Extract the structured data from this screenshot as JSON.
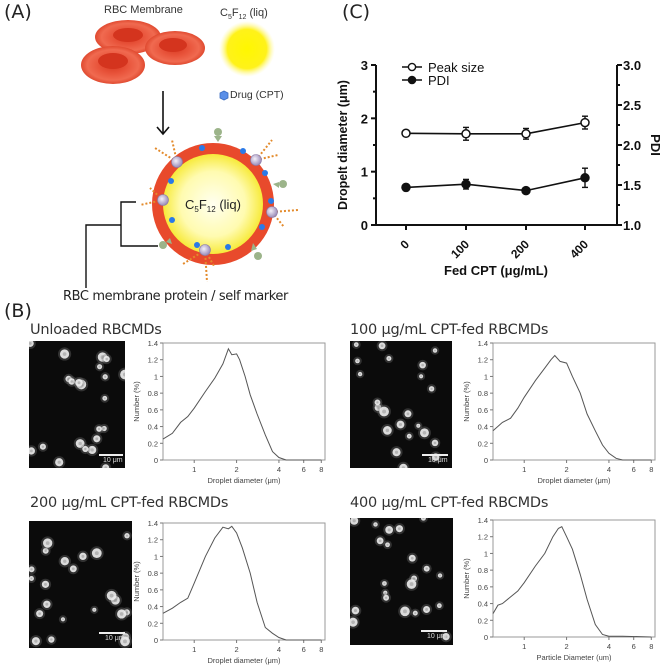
{
  "panel_a": {
    "label": "(A)",
    "rbc_label": "RBC Membrane",
    "c5f12_label": "C5F12 (liq)",
    "c5f12_main": "C",
    "c5f12_sub1": "5",
    "c5f12_f": "F",
    "c5f12_sub2": "12",
    "c5f12_suffix": " (liq)",
    "drug_label": "Drug (CPT)",
    "core_label": "C5F12 (liq)",
    "marker_label": "RBC membrane protein / self marker",
    "colors": {
      "rbc": "#e8472e",
      "core": "#fff200",
      "drug": "#3a7be0",
      "chain": "#e38a2b"
    }
  },
  "panel_b": {
    "label": "(B)",
    "subpanels": [
      {
        "title": "Unloaded RBCMDs",
        "scale_text": "10 μm",
        "xlabel": "Droplet diameter (μm)",
        "ylabel": "Number (%)"
      },
      {
        "title": "100 μg/mL CPT-fed RBCMDs",
        "scale_text": "10 μm",
        "xlabel": "Droplet diameter (μm)",
        "ylabel": "Number (%)"
      },
      {
        "title": "200 μg/mL CPT-fed RBCMDs",
        "scale_text": "10 μm",
        "xlabel": "Droplet diameter (μm)",
        "ylabel": "Number (%)"
      },
      {
        "title": "400 μg/mL CPT-fed RBCMDs",
        "scale_text": "10 μm",
        "xlabel": "Particle Diameter (um)",
        "ylabel": "Number (%)"
      }
    ]
  },
  "panel_c": {
    "label": "(C)"
  },
  "chart_data": [
    {
      "type": "line",
      "title": "(C)",
      "xlabel": "Fed CPT (μg/mL)",
      "ylabel": "Dropelt diameter (μm)",
      "y2label": "PDI",
      "categories": [
        "0",
        "100",
        "200",
        "400"
      ],
      "ylim": [
        0,
        3
      ],
      "y2lim": [
        1.0,
        3.0
      ],
      "yticks": [
        "0",
        "1",
        "2",
        "3"
      ],
      "y2ticks": [
        "1.0",
        "1.5",
        "2.0",
        "2.5",
        "3.0"
      ],
      "legend": [
        "Peak size",
        "PDI"
      ],
      "legend_position": "upper left",
      "grid": false,
      "series": [
        {
          "name": "Peak size",
          "axis": "left",
          "marker": "open-circle",
          "values": [
            1.72,
            1.71,
            1.71,
            1.92
          ],
          "errors": [
            0.03,
            0.12,
            0.1,
            0.12
          ]
        },
        {
          "name": "PDI",
          "axis": "right",
          "marker": "filled-circle",
          "values": [
            1.47,
            1.51,
            1.43,
            1.59
          ],
          "errors": [
            0.04,
            0.06,
            0.02,
            0.12
          ]
        }
      ]
    },
    {
      "type": "line",
      "title": "Unloaded RBCMDs",
      "xlabel": "Droplet diameter (μm)",
      "ylabel": "Number (%)",
      "xscale": "log",
      "xticks": [
        "1",
        "2",
        "4",
        "6",
        "8"
      ],
      "yticks": [
        "0",
        "0.2",
        "0.4",
        "0.6",
        "0.8",
        "1",
        "1.2",
        "1.4"
      ],
      "ylim": [
        0,
        1.4
      ],
      "x": [
        0.6,
        0.7,
        0.8,
        0.9,
        1.0,
        1.2,
        1.4,
        1.6,
        1.75,
        1.85,
        2.0,
        2.1,
        2.3,
        2.5,
        2.8,
        3.2,
        3.6,
        4.0,
        4.5,
        6.0,
        8.0
      ],
      "values": [
        0.25,
        0.32,
        0.45,
        0.52,
        0.62,
        0.82,
        0.98,
        1.15,
        1.33,
        1.26,
        1.27,
        1.2,
        1.0,
        0.78,
        0.55,
        0.3,
        0.1,
        0.03,
        0.0,
        0.0,
        0.0
      ]
    },
    {
      "type": "line",
      "title": "100 μg/mL CPT-fed RBCMDs",
      "xlabel": "Droplet diameter (μm)",
      "ylabel": "Number (%)",
      "xscale": "log",
      "xticks": [
        "1",
        "2",
        "4",
        "6",
        "8"
      ],
      "yticks": [
        "0",
        "0.2",
        "0.4",
        "0.6",
        "0.8",
        "1",
        "1.2",
        "1.4"
      ],
      "ylim": [
        0,
        1.4
      ],
      "x": [
        0.6,
        0.7,
        0.8,
        0.9,
        1.0,
        1.2,
        1.4,
        1.55,
        1.65,
        1.8,
        2.0,
        2.2,
        2.5,
        2.8,
        3.2,
        3.6,
        4.0,
        4.5,
        5.0,
        6.0,
        8.0
      ],
      "values": [
        0.35,
        0.45,
        0.5,
        0.62,
        0.75,
        0.95,
        1.1,
        1.2,
        1.25,
        1.18,
        1.16,
        1.0,
        0.8,
        0.55,
        0.35,
        0.18,
        0.08,
        0.02,
        0.0,
        0.0,
        0.0
      ]
    },
    {
      "type": "line",
      "title": "200 μg/mL CPT-fed RBCMDs",
      "xlabel": "Droplet diameter (μm)",
      "ylabel": "Number (%)",
      "xscale": "log",
      "xticks": [
        "1",
        "2",
        "4",
        "6",
        "8"
      ],
      "yticks": [
        "0",
        "0.2",
        "0.4",
        "0.6",
        "0.8",
        "1",
        "1.2",
        "1.4"
      ],
      "ylim": [
        0,
        1.4
      ],
      "x": [
        0.6,
        0.7,
        0.8,
        0.9,
        1.0,
        1.2,
        1.4,
        1.6,
        1.75,
        1.85,
        2.0,
        2.2,
        2.5,
        2.8,
        3.2,
        3.6,
        4.0,
        4.5,
        6.0,
        8.0
      ],
      "values": [
        0.32,
        0.38,
        0.45,
        0.5,
        0.68,
        1.0,
        1.22,
        1.35,
        1.33,
        1.36,
        1.28,
        1.1,
        0.8,
        0.45,
        0.15,
        0.08,
        0.03,
        0.0,
        0.0,
        0.0
      ]
    },
    {
      "type": "line",
      "title": "400 μg/mL CPT-fed RBCMDs",
      "xlabel": "Particle Diameter (um)",
      "ylabel": "Number (%)",
      "xscale": "log",
      "xticks": [
        "1",
        "2",
        "4",
        "6",
        "8"
      ],
      "yticks": [
        "0",
        "0.2",
        "0.4",
        "0.6",
        "0.8",
        "1",
        "1.2",
        "1.4"
      ],
      "ylim": [
        0,
        1.4
      ],
      "x": [
        0.6,
        0.65,
        0.7,
        0.8,
        0.9,
        1.0,
        1.2,
        1.4,
        1.6,
        1.75,
        1.85,
        2.0,
        2.2,
        2.5,
        2.8,
        3.2,
        3.6,
        4.0,
        5.0,
        8.0
      ],
      "values": [
        0.28,
        0.38,
        0.4,
        0.48,
        0.55,
        0.65,
        0.85,
        1.0,
        1.2,
        1.3,
        1.32,
        1.2,
        1.05,
        0.75,
        0.45,
        0.15,
        0.03,
        0.01,
        0.01,
        0.0
      ]
    }
  ]
}
